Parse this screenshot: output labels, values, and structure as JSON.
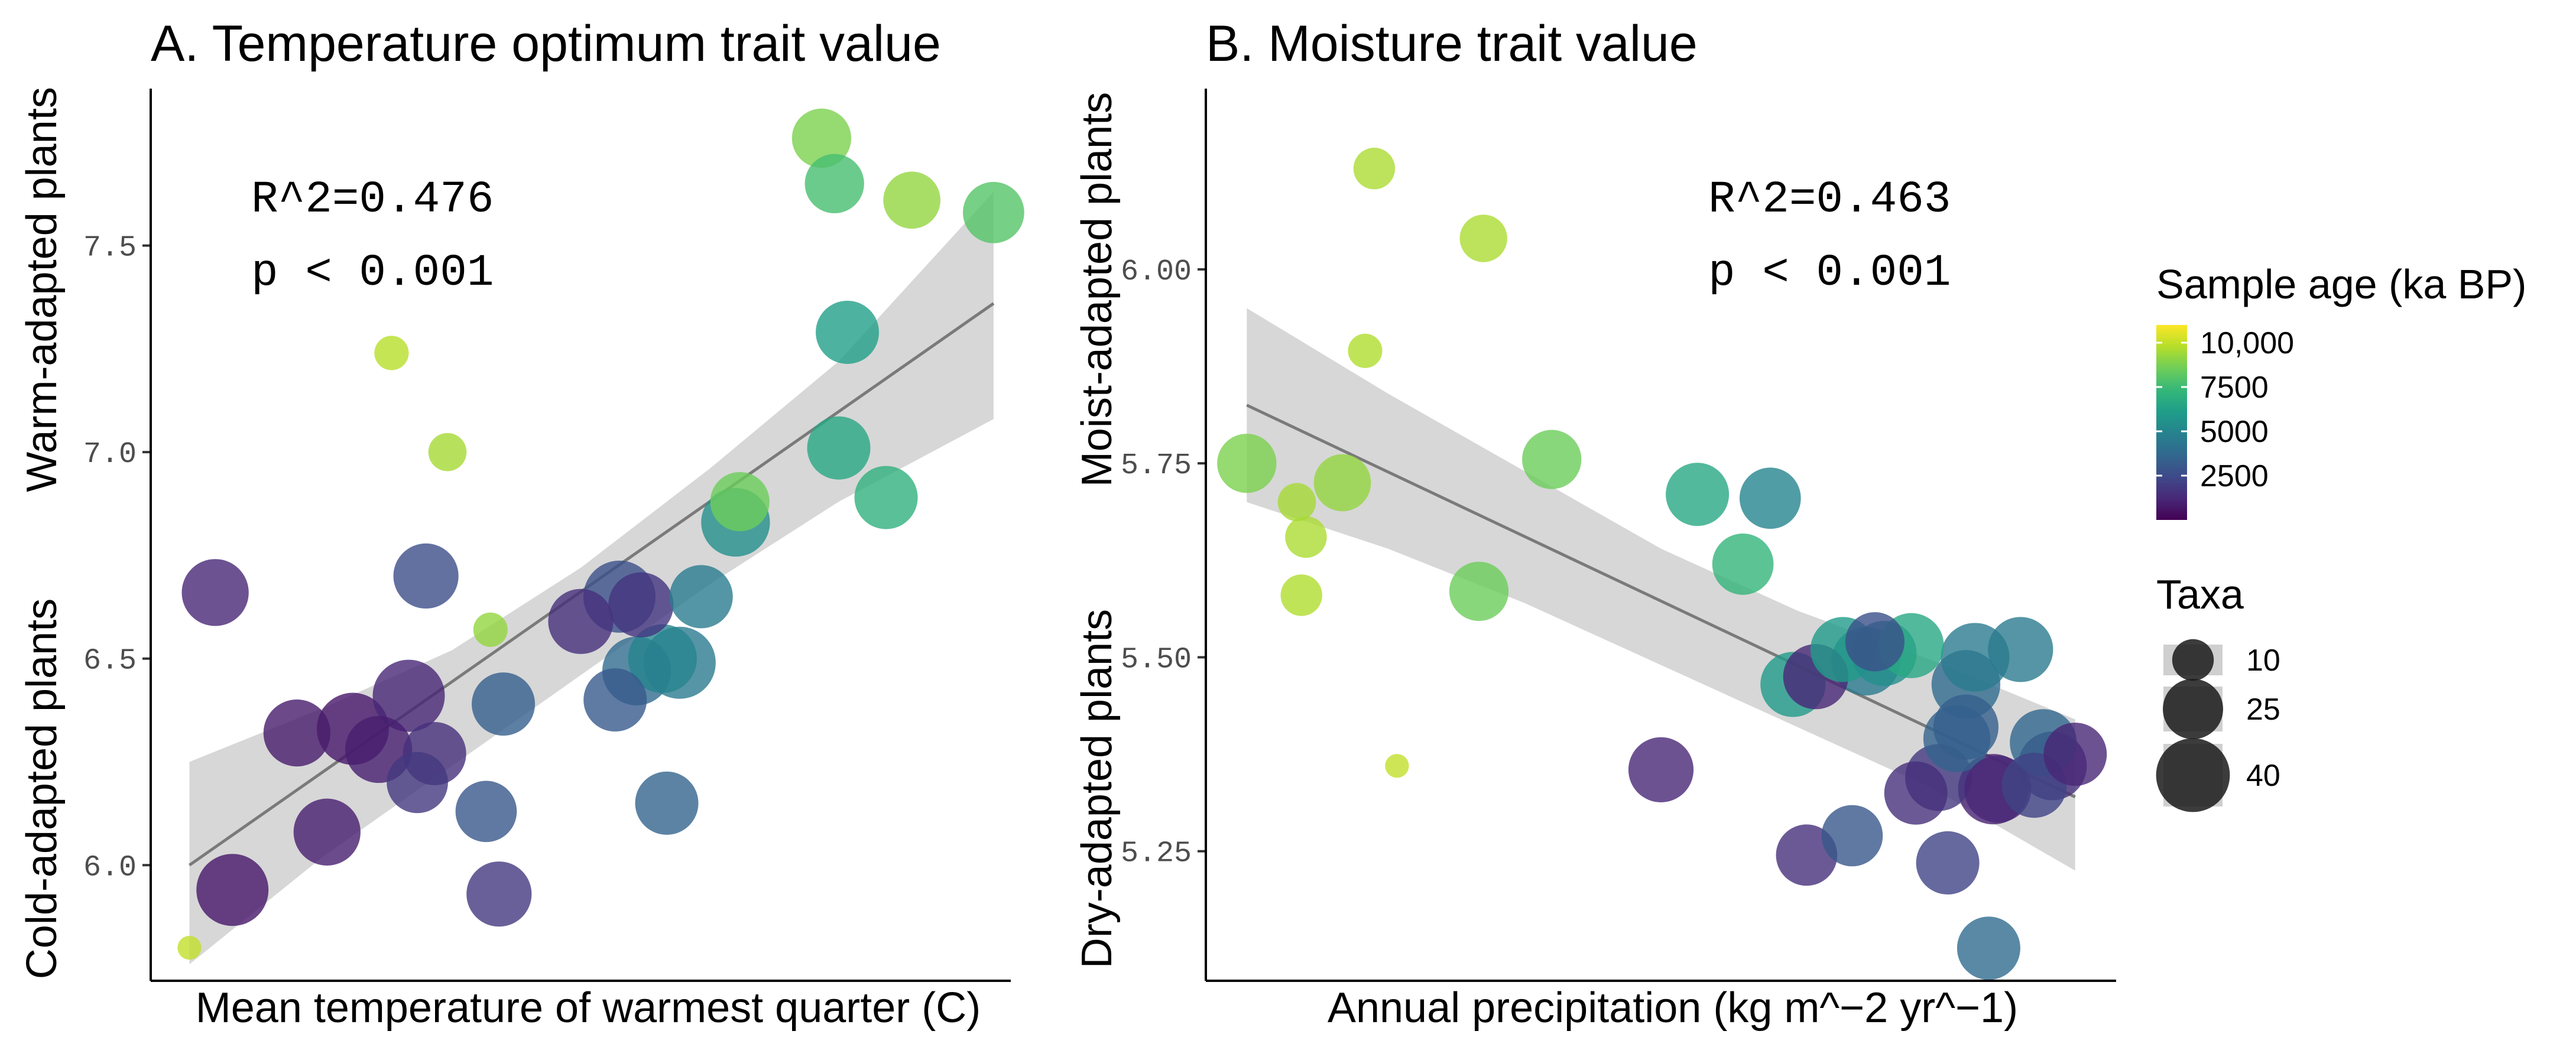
{
  "chart_data": [
    {
      "type": "scatter",
      "id": "A",
      "title": "A. Temperature optimum trait value",
      "xlabel": "Mean temperature of warmest quarter (C)",
      "ylabel_top": "Warm-adapted plants",
      "ylabel_bottom": "Cold-adapted plants",
      "xlim": [
        0,
        10
      ],
      "ylim": [
        5.72,
        7.88
      ],
      "yticks": [
        6.0,
        6.5,
        7.0,
        7.5
      ],
      "ytick_labels": [
        "6.0",
        "6.5",
        "7.0",
        "7.5"
      ],
      "stat_r2": "R^2=0.476",
      "stat_p": "p < 0.001",
      "fit": {
        "x": [
          0.45,
          9.8
        ],
        "y": [
          6.0,
          7.36
        ]
      },
      "band": {
        "x": [
          0.45,
          2.0,
          3.5,
          5.0,
          6.5,
          8.0,
          9.8
        ],
        "lower": [
          5.76,
          6.02,
          6.24,
          6.46,
          6.68,
          6.88,
          7.08
        ],
        "upper": [
          6.25,
          6.38,
          6.52,
          6.72,
          6.96,
          7.22,
          7.63
        ]
      },
      "points": [
        {
          "x": 0.45,
          "y": 5.8,
          "age": 10000,
          "taxa": 2
        },
        {
          "x": 0.75,
          "y": 6.66,
          "age": 1200,
          "taxa": 32
        },
        {
          "x": 0.95,
          "y": 5.94,
          "age": 700,
          "taxa": 38
        },
        {
          "x": 1.7,
          "y": 6.32,
          "age": 800,
          "taxa": 32
        },
        {
          "x": 2.05,
          "y": 6.08,
          "age": 900,
          "taxa": 32
        },
        {
          "x": 2.35,
          "y": 6.33,
          "age": 700,
          "taxa": 38
        },
        {
          "x": 2.65,
          "y": 6.28,
          "age": 900,
          "taxa": 32
        },
        {
          "x": 2.8,
          "y": 7.24,
          "age": 9800,
          "taxa": 6
        },
        {
          "x": 3.0,
          "y": 6.41,
          "age": 1200,
          "taxa": 38
        },
        {
          "x": 3.1,
          "y": 6.2,
          "age": 1800,
          "taxa": 26
        },
        {
          "x": 3.2,
          "y": 6.7,
          "age": 2600,
          "taxa": 30
        },
        {
          "x": 3.3,
          "y": 6.27,
          "age": 1500,
          "taxa": 28
        },
        {
          "x": 3.45,
          "y": 7.0,
          "age": 9500,
          "taxa": 8
        },
        {
          "x": 3.9,
          "y": 6.13,
          "age": 3000,
          "taxa": 26
        },
        {
          "x": 3.95,
          "y": 6.57,
          "age": 9200,
          "taxa": 6
        },
        {
          "x": 4.05,
          "y": 5.93,
          "age": 1800,
          "taxa": 30
        },
        {
          "x": 4.1,
          "y": 6.39,
          "age": 3300,
          "taxa": 28
        },
        {
          "x": 5.0,
          "y": 6.59,
          "age": 1500,
          "taxa": 30
        },
        {
          "x": 5.4,
          "y": 6.4,
          "age": 3100,
          "taxa": 28
        },
        {
          "x": 5.45,
          "y": 6.65,
          "age": 2700,
          "taxa": 38
        },
        {
          "x": 5.65,
          "y": 6.47,
          "age": 3800,
          "taxa": 34
        },
        {
          "x": 5.7,
          "y": 6.63,
          "age": 1700,
          "taxa": 30
        },
        {
          "x": 5.95,
          "y": 6.5,
          "age": 5000,
          "taxa": 34
        },
        {
          "x": 6.0,
          "y": 6.15,
          "age": 3500,
          "taxa": 28
        },
        {
          "x": 6.15,
          "y": 6.49,
          "age": 4500,
          "taxa": 38
        },
        {
          "x": 6.4,
          "y": 6.65,
          "age": 4600,
          "taxa": 28
        },
        {
          "x": 6.8,
          "y": 6.83,
          "age": 5500,
          "taxa": 34
        },
        {
          "x": 6.85,
          "y": 6.88,
          "age": 8500,
          "taxa": 24
        },
        {
          "x": 7.8,
          "y": 7.76,
          "age": 8800,
          "taxa": 24
        },
        {
          "x": 7.95,
          "y": 7.65,
          "age": 7700,
          "taxa": 24
        },
        {
          "x": 8.0,
          "y": 7.01,
          "age": 6600,
          "taxa": 28
        },
        {
          "x": 8.1,
          "y": 7.29,
          "age": 6200,
          "taxa": 28
        },
        {
          "x": 8.55,
          "y": 6.89,
          "age": 7000,
          "taxa": 28
        },
        {
          "x": 8.85,
          "y": 7.61,
          "age": 9200,
          "taxa": 22
        },
        {
          "x": 9.8,
          "y": 7.58,
          "age": 8000,
          "taxa": 26
        }
      ]
    },
    {
      "type": "scatter",
      "id": "B",
      "title": "B. Moisture trait value",
      "xlabel": "Annual precipitation (kg m^−2 yr^−1)",
      "ylabel_top": "Moist-adapted plants",
      "ylabel_bottom": "Dry-adapted plants",
      "xlim": [
        0,
        10
      ],
      "ylim": [
        5.083,
        6.233
      ],
      "yticks": [
        5.25,
        5.5,
        5.75,
        6.0
      ],
      "ytick_labels": [
        "5.25",
        "5.50",
        "5.75",
        "6.00"
      ],
      "stat_r2": "R^2=0.463",
      "stat_p": "p < 0.001",
      "fit": {
        "x": [
          0.45,
          9.55
        ],
        "y": [
          5.825,
          5.32
        ]
      },
      "band": {
        "x": [
          0.45,
          2.0,
          3.5,
          5.0,
          6.5,
          8.0,
          9.55
        ],
        "lower": [
          5.7,
          5.64,
          5.57,
          5.49,
          5.41,
          5.33,
          5.225
        ],
        "upper": [
          5.95,
          5.84,
          5.74,
          5.64,
          5.56,
          5.495,
          5.42
        ]
      },
      "points": [
        {
          "x": 0.45,
          "y": 5.75,
          "age": 8800,
          "taxa": 24
        },
        {
          "x": 1.0,
          "y": 5.7,
          "age": 9500,
          "taxa": 8
        },
        {
          "x": 1.05,
          "y": 5.58,
          "age": 9700,
          "taxa": 10
        },
        {
          "x": 1.1,
          "y": 5.655,
          "age": 9600,
          "taxa": 10
        },
        {
          "x": 1.5,
          "y": 5.725,
          "age": 9200,
          "taxa": 22
        },
        {
          "x": 1.75,
          "y": 5.895,
          "age": 9700,
          "taxa": 6
        },
        {
          "x": 1.85,
          "y": 6.13,
          "age": 9600,
          "taxa": 10
        },
        {
          "x": 2.1,
          "y": 5.36,
          "age": 10000,
          "taxa": 2
        },
        {
          "x": 3.0,
          "y": 5.585,
          "age": 8500,
          "taxa": 24
        },
        {
          "x": 3.05,
          "y": 6.04,
          "age": 9600,
          "taxa": 14
        },
        {
          "x": 3.8,
          "y": 5.755,
          "age": 8500,
          "taxa": 24
        },
        {
          "x": 5.0,
          "y": 5.355,
          "age": 1200,
          "taxa": 30
        },
        {
          "x": 5.4,
          "y": 5.71,
          "age": 6600,
          "taxa": 28
        },
        {
          "x": 5.9,
          "y": 5.62,
          "age": 7200,
          "taxa": 26
        },
        {
          "x": 6.2,
          "y": 5.705,
          "age": 5000,
          "taxa": 26
        },
        {
          "x": 6.45,
          "y": 5.465,
          "age": 6000,
          "taxa": 30
        },
        {
          "x": 6.6,
          "y": 5.245,
          "age": 1500,
          "taxa": 26
        },
        {
          "x": 6.7,
          "y": 5.475,
          "age": 1200,
          "taxa": 30
        },
        {
          "x": 7.0,
          "y": 5.51,
          "age": 6000,
          "taxa": 30
        },
        {
          "x": 7.1,
          "y": 5.27,
          "age": 3000,
          "taxa": 26
        },
        {
          "x": 7.25,
          "y": 5.495,
          "age": 4500,
          "taxa": 34
        },
        {
          "x": 7.35,
          "y": 5.52,
          "age": 2700,
          "taxa": 24
        },
        {
          "x": 7.45,
          "y": 5.505,
          "age": 5500,
          "taxa": 30
        },
        {
          "x": 7.75,
          "y": 5.515,
          "age": 6600,
          "taxa": 30
        },
        {
          "x": 7.8,
          "y": 5.325,
          "age": 1500,
          "taxa": 28
        },
        {
          "x": 8.05,
          "y": 5.345,
          "age": 1800,
          "taxa": 32
        },
        {
          "x": 8.15,
          "y": 5.235,
          "age": 2200,
          "taxa": 28
        },
        {
          "x": 8.25,
          "y": 5.395,
          "age": 3500,
          "taxa": 32
        },
        {
          "x": 8.35,
          "y": 5.465,
          "age": 3800,
          "taxa": 34
        },
        {
          "x": 8.35,
          "y": 5.41,
          "age": 3300,
          "taxa": 30
        },
        {
          "x": 8.45,
          "y": 5.5,
          "age": 4500,
          "taxa": 34
        },
        {
          "x": 8.6,
          "y": 5.125,
          "age": 3800,
          "taxa": 28
        },
        {
          "x": 8.65,
          "y": 5.33,
          "age": 1000,
          "taxa": 36
        },
        {
          "x": 8.7,
          "y": 5.33,
          "age": 1200,
          "taxa": 32
        },
        {
          "x": 8.95,
          "y": 5.51,
          "age": 4500,
          "taxa": 30
        },
        {
          "x": 9.1,
          "y": 5.335,
          "age": 2200,
          "taxa": 30
        },
        {
          "x": 9.2,
          "y": 5.39,
          "age": 3600,
          "taxa": 32
        },
        {
          "x": 9.3,
          "y": 5.36,
          "age": 1500,
          "taxa": 34
        },
        {
          "x": 9.55,
          "y": 5.375,
          "age": 1200,
          "taxa": 28
        }
      ]
    }
  ],
  "legend": {
    "color_title": "Sample age (ka BP)",
    "color_range": [
      0,
      11000
    ],
    "color_ticks": [
      {
        "value": 10000,
        "label": "10,000"
      },
      {
        "value": 7500,
        "label": "7500"
      },
      {
        "value": 5000,
        "label": "5000"
      },
      {
        "value": 2500,
        "label": "2500"
      }
    ],
    "size_title": "Taxa",
    "size_items": [
      {
        "value": 10,
        "label": "10"
      },
      {
        "value": 25,
        "label": "25"
      },
      {
        "value": 40,
        "label": "40"
      }
    ],
    "viridis": [
      "#440154",
      "#482878",
      "#3e4a89",
      "#31688e",
      "#26828e",
      "#1f9e89",
      "#35b779",
      "#6ece58",
      "#b5de2b",
      "#fde725"
    ],
    "size_swatch_fill": "#cfcfcf",
    "size_dot_color": "#1a1a1a"
  }
}
